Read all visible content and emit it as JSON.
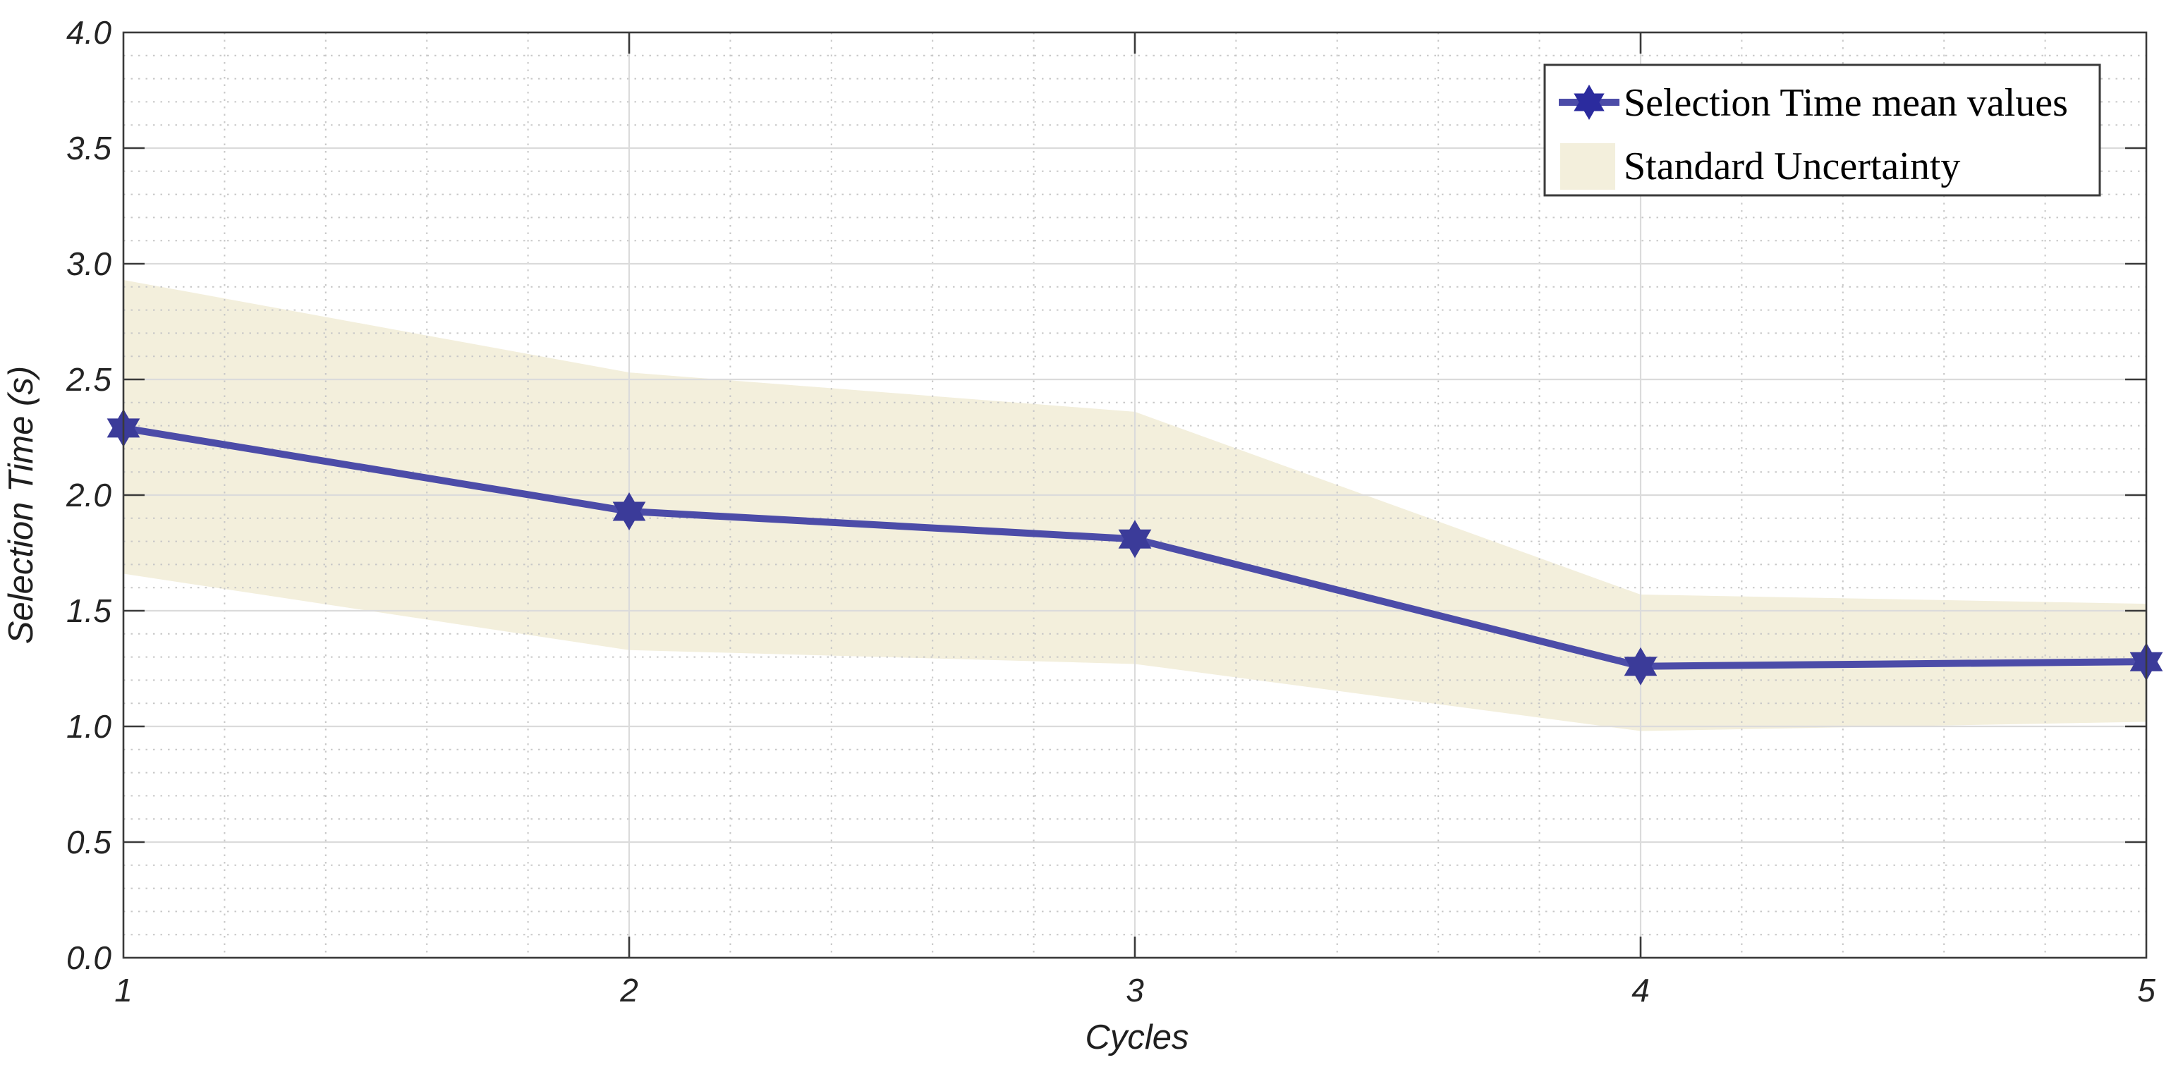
{
  "chart_data": {
    "type": "line",
    "title": "",
    "xlabel": "Cycles",
    "ylabel": "Selection Time (s)",
    "x": [
      1,
      2,
      3,
      4,
      5
    ],
    "series": [
      {
        "name": "Selection Time mean values",
        "values": [
          2.29,
          1.93,
          1.81,
          1.26,
          1.28
        ],
        "color": "#4C4CA8",
        "marker": "hexagram-star",
        "marker_color": "#3B3B99"
      }
    ],
    "band": {
      "name": "Standard Uncertainty",
      "upper": [
        2.93,
        2.53,
        2.36,
        1.57,
        1.53
      ],
      "lower": [
        1.66,
        1.33,
        1.27,
        0.98,
        1.02
      ],
      "color": "#F3EFDC"
    },
    "xlim": [
      1,
      5
    ],
    "ylim": [
      0,
      4
    ],
    "x_ticks": [
      1,
      2,
      3,
      4,
      5
    ],
    "x_tick_labels": [
      "1",
      "2",
      "3",
      "4",
      "5"
    ],
    "y_ticks": [
      0,
      0.5,
      1,
      1.5,
      2,
      2.5,
      3,
      3.5,
      4
    ],
    "y_tick_labels": [
      "0.0",
      "0.5",
      "1.0",
      "1.5",
      "2.0",
      "2.5",
      "3.0",
      "3.5",
      "4.0"
    ],
    "x_minor_step": 0.2,
    "y_minor_step": 0.1,
    "grid": "major-solid-minor-dotted",
    "legend_position": "top-right",
    "legend": [
      "Selection Time mean values",
      "Standard Uncertainty"
    ],
    "colors": {
      "axis_box": "#3A3A3A",
      "major_grid": "#DBDBDB",
      "minor_grid": "#C7C7C7",
      "background": "#FFFFFF",
      "legend_background": "#FFFFFF"
    }
  }
}
